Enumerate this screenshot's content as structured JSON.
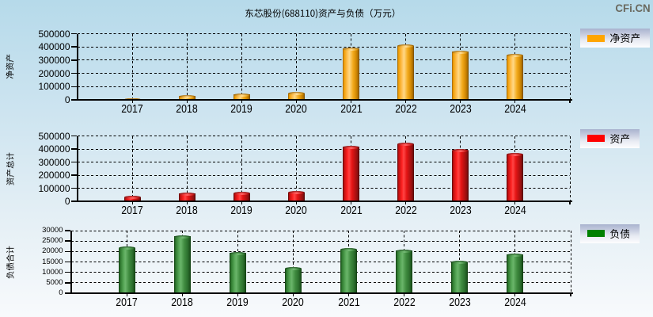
{
  "page": {
    "title": "东芯股份(688110)资产与负债（万元）",
    "logo": "CFi.CN",
    "background_top": "#b6daea",
    "background_bottom": "#f8fafc",
    "logo_color": "#6a695f",
    "text_color": "#000000"
  },
  "chart_data": [
    {
      "type": "bar",
      "id": "net-assets",
      "title": "净资产",
      "ylabel": "净资产",
      "xlabel": "",
      "legend": "净资产",
      "legend_position": "right-top",
      "bar_color": "#FFA500",
      "grid": true,
      "categories": [
        "2017",
        "2018",
        "2019",
        "2020",
        "2021",
        "2022",
        "2023",
        "2024"
      ],
      "values": [
        14000,
        37500,
        48500,
        59500,
        396000,
        418000,
        373000,
        346000
      ],
      "ylim": [
        0,
        500000
      ],
      "yticks": [
        "0",
        "100000",
        "200000",
        "300000",
        "400000",
        "500000"
      ],
      "unit": "万元"
    },
    {
      "type": "bar",
      "id": "assets",
      "title": "资产",
      "ylabel": "资产总计",
      "xlabel": "",
      "legend": "资产",
      "legend_position": "right-top",
      "bar_color": "#FF0000",
      "grid": true,
      "categories": [
        "2017",
        "2018",
        "2019",
        "2020",
        "2021",
        "2022",
        "2023",
        "2024"
      ],
      "values": [
        40500,
        68000,
        72000,
        77500,
        427000,
        447000,
        397000,
        370000
      ],
      "ylim": [
        0,
        500000
      ],
      "yticks": [
        "0",
        "100000",
        "200000",
        "300000",
        "400000",
        "500000"
      ],
      "unit": "万元"
    },
    {
      "type": "bar",
      "id": "liabilities",
      "title": "负债",
      "ylabel": "负债合计",
      "xlabel": "",
      "legend": "负债",
      "legend_position": "right-top",
      "bar_color": "#008000",
      "grid": true,
      "categories": [
        "2017",
        "2018",
        "2019",
        "2020",
        "2021",
        "2022",
        "2023",
        "2024"
      ],
      "values": [
        22400,
        27800,
        19800,
        12500,
        21600,
        21000,
        15600,
        19100
      ],
      "ylim": [
        0,
        30000
      ],
      "yticks": [
        "0",
        "5000",
        "10000",
        "15000",
        "20000",
        "25000",
        "30000"
      ],
      "unit": "万元"
    }
  ]
}
